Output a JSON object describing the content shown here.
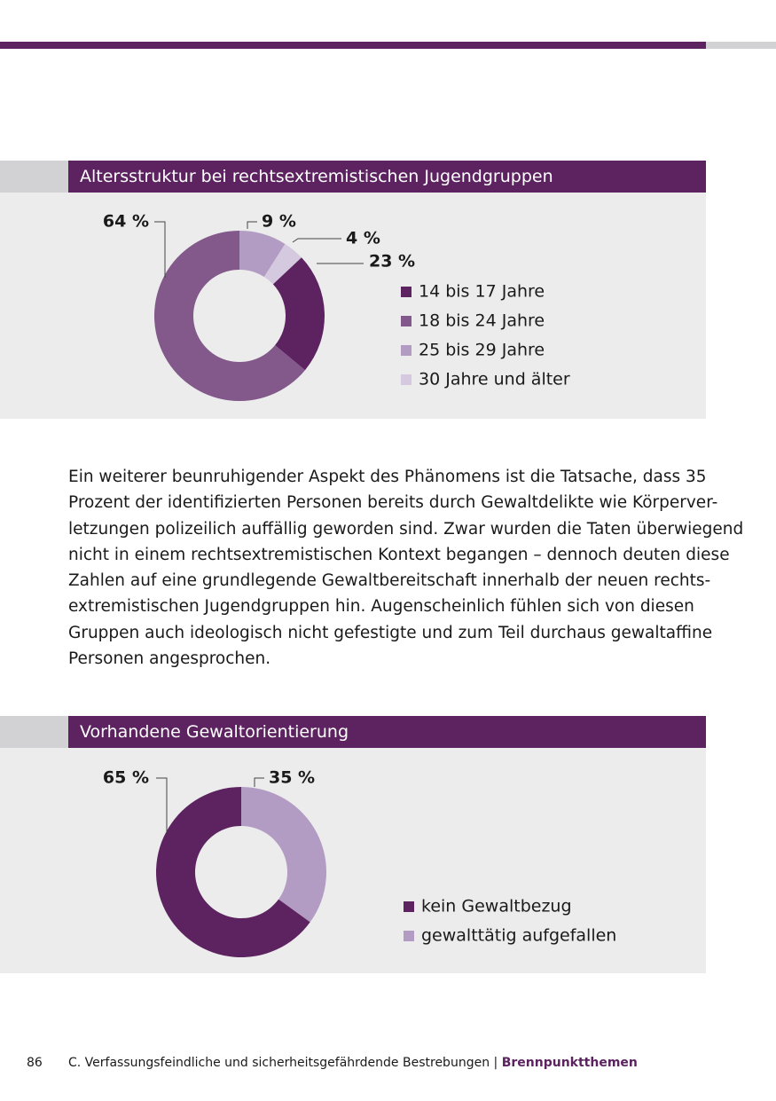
{
  "chart_data": [
    {
      "type": "donut",
      "title": "Altersstruktur bei rechtsextremistischen Jugendgruppen",
      "categories": [
        "14 bis 17 Jahre",
        "18 bis 24 Jahre",
        "25 bis 29 Jahre",
        "30 Jahre und älter"
      ],
      "values": [
        23,
        64,
        9,
        4
      ],
      "value_labels": [
        "23 %",
        "64 %",
        "9 %",
        "4 %"
      ],
      "colors": [
        "#5c2360",
        "#82598a",
        "#b39cc4",
        "#d5c9df"
      ]
    },
    {
      "type": "donut",
      "title": "Vorhandene Gewaltorientierung",
      "categories": [
        "kein Gewaltbezug",
        "gewalttätig aufgefallen"
      ],
      "values": [
        65,
        35
      ],
      "value_labels": [
        "65 %",
        "35 %"
      ],
      "colors": [
        "#5c2360",
        "#b39cc4"
      ]
    }
  ],
  "paragraph": [
    "Ein weiterer beunruhigender Aspekt des Phänomens ist die Tatsache, dass 35",
    "Prozent der identifizierten Personen bereits durch Gewaltdelikte wie Körperver-",
    "letzungen polizeilich auffällig geworden sind. Zwar wurden die Taten überwiegend",
    "nicht in einem rechtsextremistischen Kontext begangen – dennoch deuten diese",
    "Zahlen auf eine grundlegende Gewaltbereitschaft innerhalb der neuen rechts-",
    "extremistischen Jugendgruppen hin. Augenscheinlich fühlen sich von diesen",
    "Gruppen auch ideologisch nicht gefestigte und zum Teil durchaus gewaltaffine",
    "Personen angesprochen."
  ],
  "footer": {
    "page_number": "86",
    "section": "C. Verfassungsfeindliche und sicherheitsgefährdende Bestrebungen",
    "separator": "|",
    "topic": "Brennpunktthemen"
  }
}
